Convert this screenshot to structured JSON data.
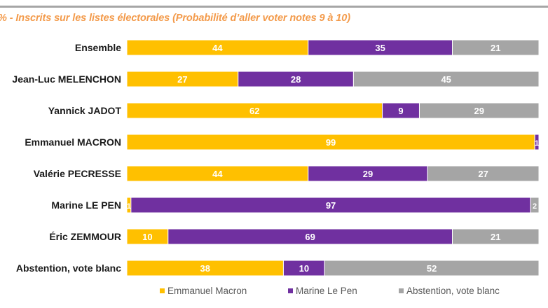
{
  "chart_data": {
    "type": "bar",
    "orientation": "horizontal",
    "stacked": true,
    "title": "% - Inscrits sur les listes électorales (Probabilité d’aller voter notes 9 à 10)",
    "xlabel": "",
    "ylabel": "",
    "xlim": [
      0,
      100
    ],
    "grid": false,
    "legend_position": "bottom",
    "categories": [
      "Ensemble",
      "Jean-Luc MELENCHON",
      "Yannick JADOT",
      "Emmanuel MACRON",
      "Valérie PECRESSE",
      "Marine LE PEN",
      "Éric ZEMMOUR",
      "Abstention, vote blanc"
    ],
    "series": [
      {
        "name": "Emmanuel Macron",
        "color": "#ffc000",
        "values": [
          44,
          27,
          62,
          99,
          44,
          1,
          10,
          38
        ]
      },
      {
        "name": "Marine Le Pen",
        "color": "#7030a0",
        "values": [
          35,
          28,
          9,
          1,
          29,
          97,
          69,
          10
        ]
      },
      {
        "name": "Abstention, vote blanc",
        "color": "#a5a5a5",
        "values": [
          21,
          45,
          29,
          0,
          27,
          2,
          21,
          52
        ]
      }
    ]
  }
}
